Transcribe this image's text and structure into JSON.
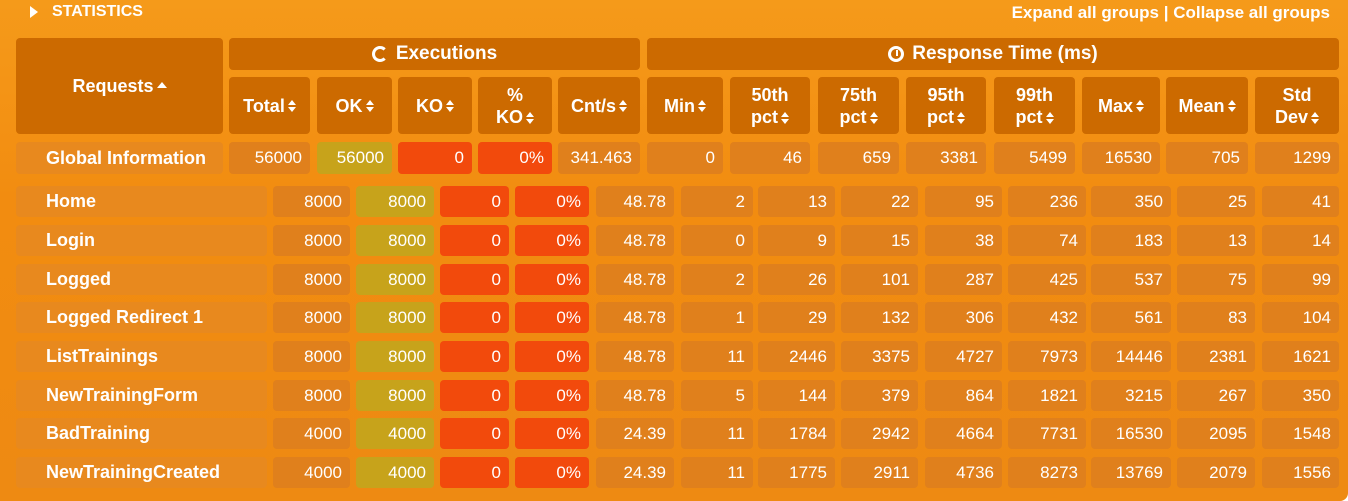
{
  "header": {
    "section_title": "STATISTICS",
    "expand_label": "Expand all groups",
    "separator": "|",
    "collapse_label": "Collapse all groups"
  },
  "columns": {
    "requests": "Requests",
    "executions_group": "Executions",
    "response_group": "Response Time (ms)",
    "total": "Total",
    "ok": "OK",
    "ko": "KO",
    "pct_ko_1": "%",
    "pct_ko_2": "KO",
    "cnt_s": "Cnt/s",
    "min": "Min",
    "p50_1": "50th",
    "p75_1": "75th",
    "p95_1": "95th",
    "p99_1": "99th",
    "pct": "pct",
    "max": "Max",
    "mean": "Mean",
    "std_1": "Std",
    "std_2": "Dev"
  },
  "global": {
    "name": "Global Information",
    "values": [
      "56000",
      "56000",
      "0",
      "0%",
      "341.463",
      "0",
      "46",
      "659",
      "3381",
      "5499",
      "16530",
      "705",
      "1299"
    ]
  },
  "rows": [
    {
      "name": "Home",
      "values": [
        "8000",
        "8000",
        "0",
        "0%",
        "48.78",
        "2",
        "13",
        "22",
        "95",
        "236",
        "350",
        "25",
        "41"
      ]
    },
    {
      "name": "Login",
      "values": [
        "8000",
        "8000",
        "0",
        "0%",
        "48.78",
        "0",
        "9",
        "15",
        "38",
        "74",
        "183",
        "13",
        "14"
      ]
    },
    {
      "name": "Logged",
      "values": [
        "8000",
        "8000",
        "0",
        "0%",
        "48.78",
        "2",
        "26",
        "101",
        "287",
        "425",
        "537",
        "75",
        "99"
      ]
    },
    {
      "name": "Logged Redirect 1",
      "values": [
        "8000",
        "8000",
        "0",
        "0%",
        "48.78",
        "1",
        "29",
        "132",
        "306",
        "432",
        "561",
        "83",
        "104"
      ]
    },
    {
      "name": "ListTrainings",
      "values": [
        "8000",
        "8000",
        "0",
        "0%",
        "48.78",
        "11",
        "2446",
        "3375",
        "4727",
        "7973",
        "14446",
        "2381",
        "1621"
      ]
    },
    {
      "name": "NewTrainingForm",
      "values": [
        "8000",
        "8000",
        "0",
        "0%",
        "48.78",
        "5",
        "144",
        "379",
        "864",
        "1821",
        "3215",
        "267",
        "350"
      ]
    },
    {
      "name": "BadTraining",
      "values": [
        "4000",
        "4000",
        "0",
        "0%",
        "24.39",
        "11",
        "1784",
        "2942",
        "4664",
        "7731",
        "16530",
        "2095",
        "1548"
      ]
    },
    {
      "name": "NewTrainingCreated",
      "values": [
        "4000",
        "4000",
        "0",
        "0%",
        "24.39",
        "11",
        "1775",
        "2911",
        "4736",
        "8273",
        "13769",
        "2079",
        "1556"
      ]
    }
  ],
  "colors": {
    "panel": "#f28c10",
    "header_cell": "#cc6a00",
    "ok_cell": "#c7a31b",
    "ko_cell": "#f24a0c"
  }
}
